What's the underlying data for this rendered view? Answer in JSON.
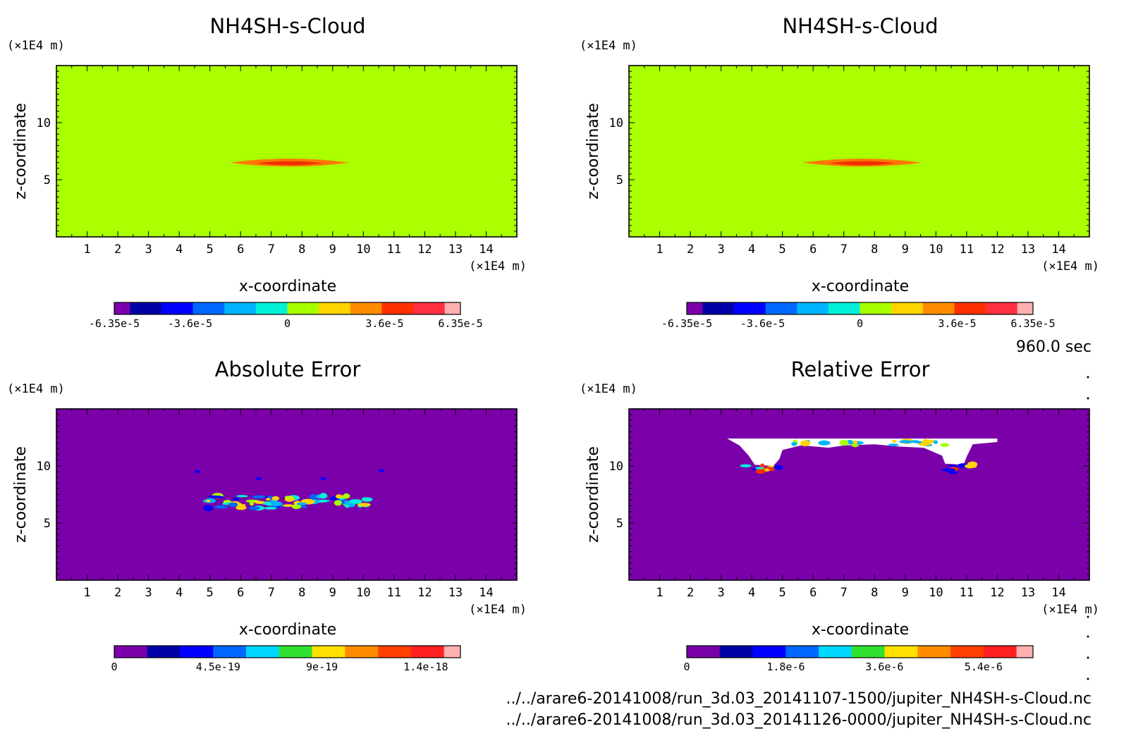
{
  "figure": {
    "time_label": "960.0 sec",
    "files": [
      "../../arare6-20141008/run_3d.03_20141107-1500/jupiter_NH4SH-s-Cloud.nc",
      "../../arare6-20141008/run_3d.03_20141126-0000/jupiter_NH4SH-s-Cloud.nc"
    ]
  },
  "chart_data": [
    {
      "type": "heatmap",
      "title": "NH4SH-s-Cloud",
      "xlabel": "x-coordinate",
      "ylabel": "z-coordinate",
      "x_unit": "(×1E4 m)",
      "y_unit": "(×1E4 m)",
      "xlim": [
        0,
        15
      ],
      "ylim": [
        0,
        15
      ],
      "x_ticks": [
        1,
        2,
        3,
        4,
        5,
        6,
        7,
        8,
        9,
        10,
        11,
        12,
        13,
        14
      ],
      "y_ticks": [
        5,
        10
      ],
      "background_color": "#aaff00",
      "features": [
        {
          "kind": "lens",
          "center": [
            7.6,
            6.5
          ],
          "half_width": 1.95,
          "half_height": 0.35,
          "color": "#ff7a00"
        },
        {
          "kind": "lens",
          "center": [
            7.6,
            6.45
          ],
          "half_width": 1.1,
          "half_height": 0.18,
          "color": "#f03000"
        }
      ],
      "colorbar": {
        "colors": [
          "#7a00aa",
          "#0000a8",
          "#0000ff",
          "#0068ff",
          "#00b4ff",
          "#00f0d8",
          "#a8ff00",
          "#ffd400",
          "#ff8c00",
          "#ff3000",
          "#ff3040",
          "#ffb0b0"
        ],
        "weights": [
          1,
          2,
          2,
          2,
          2,
          2,
          2,
          2,
          2,
          2,
          2,
          1
        ],
        "labels": [
          {
            "pos": 0.0,
            "text": "-6.35e-5"
          },
          {
            "pos": 0.219,
            "text": "-3.6e-5"
          },
          {
            "pos": 0.5,
            "text": "0"
          },
          {
            "pos": 0.781,
            "text": "3.6e-5"
          },
          {
            "pos": 1.0,
            "text": "6.35e-5"
          }
        ]
      }
    },
    {
      "type": "heatmap",
      "title": "NH4SH-s-Cloud",
      "xlabel": "x-coordinate",
      "ylabel": "z-coordinate",
      "x_unit": "(×1E4 m)",
      "y_unit": "(×1E4 m)",
      "xlim": [
        0,
        15
      ],
      "ylim": [
        0,
        15
      ],
      "x_ticks": [
        1,
        2,
        3,
        4,
        5,
        6,
        7,
        8,
        9,
        10,
        11,
        12,
        13,
        14
      ],
      "y_ticks": [
        5,
        10
      ],
      "background_color": "#aaff00",
      "features": [
        {
          "kind": "lens",
          "center": [
            7.6,
            6.5
          ],
          "half_width": 1.95,
          "half_height": 0.35,
          "color": "#ff7a00"
        },
        {
          "kind": "lens",
          "center": [
            7.6,
            6.45
          ],
          "half_width": 1.1,
          "half_height": 0.18,
          "color": "#f03000"
        }
      ],
      "colorbar": {
        "colors": [
          "#7a00aa",
          "#0000a8",
          "#0000ff",
          "#0068ff",
          "#00b4ff",
          "#00f0d8",
          "#a8ff00",
          "#ffd400",
          "#ff8c00",
          "#ff3000",
          "#ff3040",
          "#ffb0b0"
        ],
        "weights": [
          1,
          2,
          2,
          2,
          2,
          2,
          2,
          2,
          2,
          2,
          2,
          1
        ],
        "labels": [
          {
            "pos": 0.0,
            "text": "-6.35e-5"
          },
          {
            "pos": 0.219,
            "text": "-3.6e-5"
          },
          {
            "pos": 0.5,
            "text": "0"
          },
          {
            "pos": 0.781,
            "text": "3.6e-5"
          },
          {
            "pos": 1.0,
            "text": "6.35e-5"
          }
        ]
      }
    },
    {
      "type": "heatmap",
      "title": "Absolute Error",
      "xlabel": "x-coordinate",
      "ylabel": "z-coordinate",
      "x_unit": "(×1E4 m)",
      "y_unit": "(×1E4 m)",
      "xlim": [
        0,
        15
      ],
      "ylim": [
        0,
        15
      ],
      "x_ticks": [
        1,
        2,
        3,
        4,
        5,
        6,
        7,
        8,
        9,
        10,
        11,
        12,
        13,
        14
      ],
      "y_ticks": [
        5,
        10
      ],
      "background_color": "#7a00aa",
      "features": [
        {
          "kind": "speckle",
          "x_range": [
            4.8,
            10.4
          ],
          "z_range": [
            6.3,
            7.4
          ],
          "count": 70,
          "colors": [
            "#0000ff",
            "#0068ff",
            "#00b4ff",
            "#00f0d8",
            "#a8ff00",
            "#ffd400"
          ]
        },
        {
          "kind": "dot",
          "center": [
            4.6,
            9.5
          ],
          "color": "#0000ff"
        },
        {
          "kind": "dot",
          "center": [
            6.6,
            8.9
          ],
          "color": "#0000ff"
        },
        {
          "kind": "dot",
          "center": [
            8.7,
            8.9
          ],
          "color": "#0000ff"
        },
        {
          "kind": "dot",
          "center": [
            10.6,
            9.6
          ],
          "color": "#0000ff"
        }
      ],
      "colorbar": {
        "colors": [
          "#7a00aa",
          "#0000a8",
          "#0000ff",
          "#0068ff",
          "#00d8ff",
          "#30e030",
          "#ffe000",
          "#ff8c00",
          "#ff4000",
          "#ff2020",
          "#ffb0b0"
        ],
        "weights": [
          2,
          2,
          2,
          2,
          2,
          2,
          2,
          2,
          2,
          2,
          1
        ],
        "labels": [
          {
            "pos": 0.0,
            "text": "0"
          },
          {
            "pos": 0.3,
            "text": "4.5e-19"
          },
          {
            "pos": 0.6,
            "text": "9e-19"
          },
          {
            "pos": 0.9,
            "text": "1.4e-18"
          }
        ]
      }
    },
    {
      "type": "heatmap",
      "title": "Relative Error",
      "xlabel": "x-coordinate",
      "ylabel": "z-coordinate",
      "x_unit": "(×1E4 m)",
      "y_unit": "(×1E4 m)",
      "xlim": [
        0,
        15
      ],
      "ylim": [
        0,
        15
      ],
      "x_ticks": [
        1,
        2,
        3,
        4,
        5,
        6,
        7,
        8,
        9,
        10,
        11,
        12,
        13,
        14
      ],
      "y_ticks": [
        5,
        10
      ],
      "background_color": "#7a00aa",
      "features": [
        {
          "kind": "blank_region",
          "color": "#ffffff",
          "outline": [
            [
              3.2,
              12.4
            ],
            [
              12.0,
              12.4
            ],
            [
              12.0,
              12.1
            ],
            [
              11.2,
              11.9
            ],
            [
              11.0,
              10.8
            ],
            [
              10.9,
              10.1
            ],
            [
              10.3,
              10.2
            ],
            [
              10.2,
              10.9
            ],
            [
              9.6,
              11.6
            ],
            [
              8.8,
              11.7
            ],
            [
              8.0,
              11.9
            ],
            [
              7.0,
              11.8
            ],
            [
              6.5,
              11.6
            ],
            [
              5.6,
              11.8
            ],
            [
              5.0,
              11.4
            ],
            [
              4.9,
              10.6
            ],
            [
              4.7,
              10.0
            ],
            [
              4.1,
              10.1
            ],
            [
              3.9,
              10.9
            ],
            [
              3.6,
              11.8
            ]
          ]
        },
        {
          "kind": "speckle",
          "x_range": [
            3.8,
            5.0
          ],
          "z_range": [
            9.4,
            10.2
          ],
          "count": 10,
          "colors": [
            "#0000ff",
            "#ff3000",
            "#ffd400",
            "#00f0d8"
          ]
        },
        {
          "kind": "speckle",
          "x_range": [
            10.2,
            11.2
          ],
          "z_range": [
            9.4,
            10.2
          ],
          "count": 10,
          "colors": [
            "#0000ff",
            "#ff3000",
            "#ffd400",
            "#00f0d8"
          ]
        },
        {
          "kind": "speckle",
          "x_range": [
            5.0,
            10.4
          ],
          "z_range": [
            11.8,
            12.2
          ],
          "count": 24,
          "colors": [
            "#a8ff00",
            "#ffd400",
            "#00b4ff"
          ]
        }
      ],
      "colorbar": {
        "colors": [
          "#7a00aa",
          "#0000a8",
          "#0000ff",
          "#0068ff",
          "#00d8ff",
          "#30e030",
          "#ffe000",
          "#ff8c00",
          "#ff4000",
          "#ff2020",
          "#ffb0b0"
        ],
        "weights": [
          2,
          2,
          2,
          2,
          2,
          2,
          2,
          2,
          2,
          2,
          1
        ],
        "labels": [
          {
            "pos": 0.0,
            "text": "0"
          },
          {
            "pos": 0.286,
            "text": "1.8e-6"
          },
          {
            "pos": 0.571,
            "text": "3.6e-6"
          },
          {
            "pos": 0.857,
            "text": "5.4e-6"
          }
        ]
      }
    }
  ]
}
